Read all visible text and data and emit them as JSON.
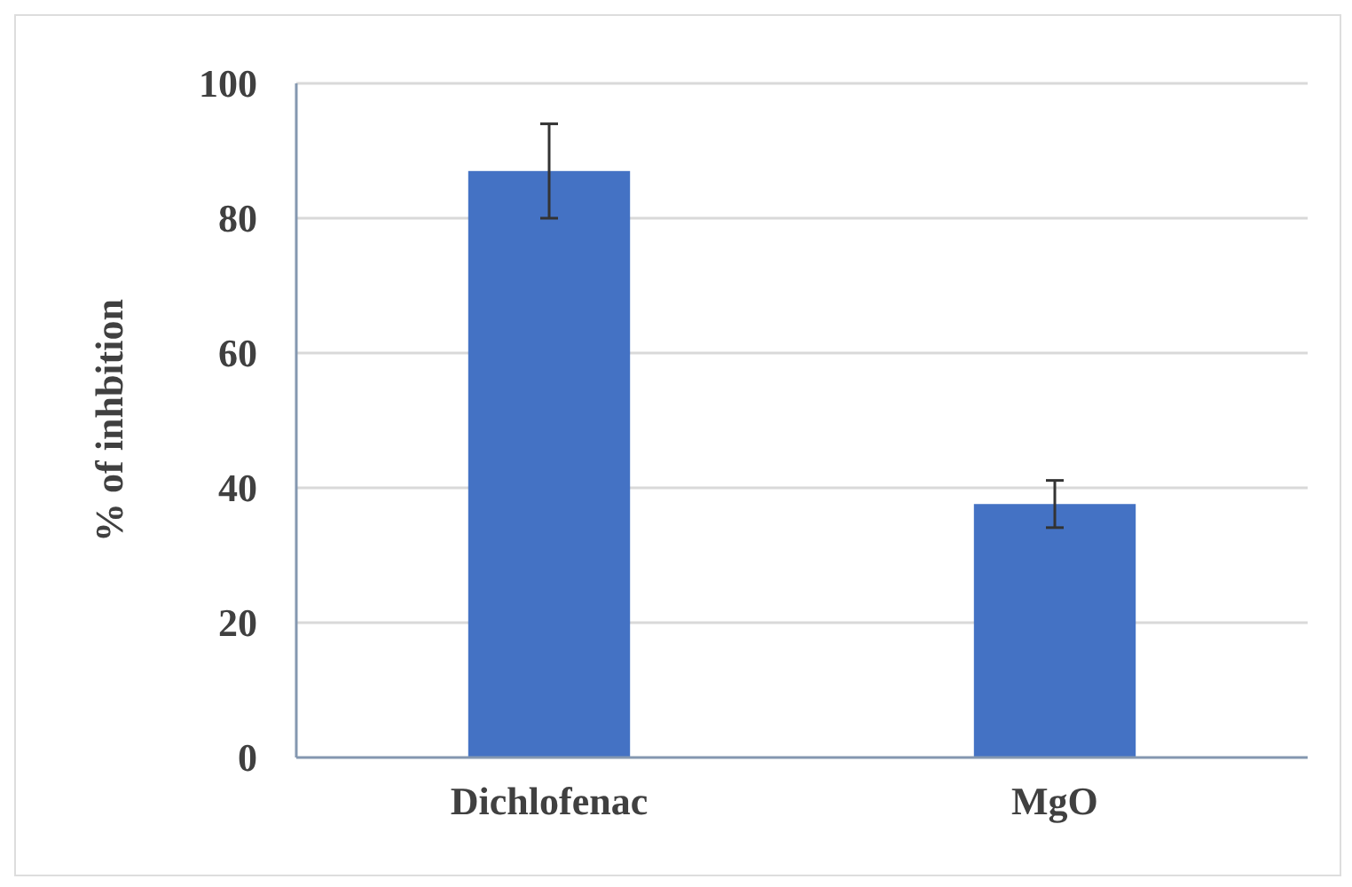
{
  "chart_data": {
    "type": "bar",
    "ylabel": "% of inhbition",
    "categories": [
      "Dichlofenac",
      "MgO"
    ],
    "values": [
      87,
      37.6
    ],
    "errors": [
      7,
      3.5
    ],
    "color": "#4472c4",
    "ylim": [
      0,
      100
    ],
    "yticks": [
      0,
      20,
      40,
      60,
      80,
      100
    ],
    "grid": "y"
  }
}
